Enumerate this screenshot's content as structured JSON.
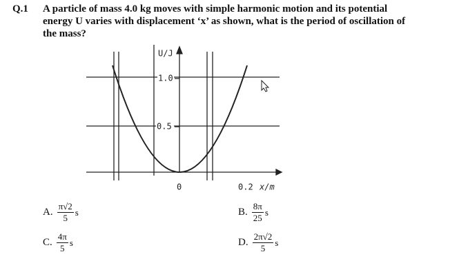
{
  "question": {
    "number": "Q.1",
    "lines": [
      "A particle of mass 4.0 kg moves with simple harmonic motion and its potential",
      "energy U varies with displacement ‘x’ as shown, what is the period of oscillation of",
      "the mass?"
    ]
  },
  "graph": {
    "y_label": "U/J",
    "y_tick_high": "1.0",
    "y_tick_mid": "0.5",
    "origin": "0",
    "x_tick": "0.2",
    "x_label": "x/m"
  },
  "options": [
    {
      "letter": "A.",
      "numerator": "π√2",
      "denominator": "5",
      "unit": "s"
    },
    {
      "letter": "B.",
      "numerator": "8π",
      "denominator": "25",
      "unit": "s"
    },
    {
      "letter": "C.",
      "numerator": "4π",
      "denominator": "5",
      "unit": "s"
    },
    {
      "letter": "D.",
      "numerator": "2π√2",
      "denominator": "5",
      "unit": "s"
    }
  ]
}
